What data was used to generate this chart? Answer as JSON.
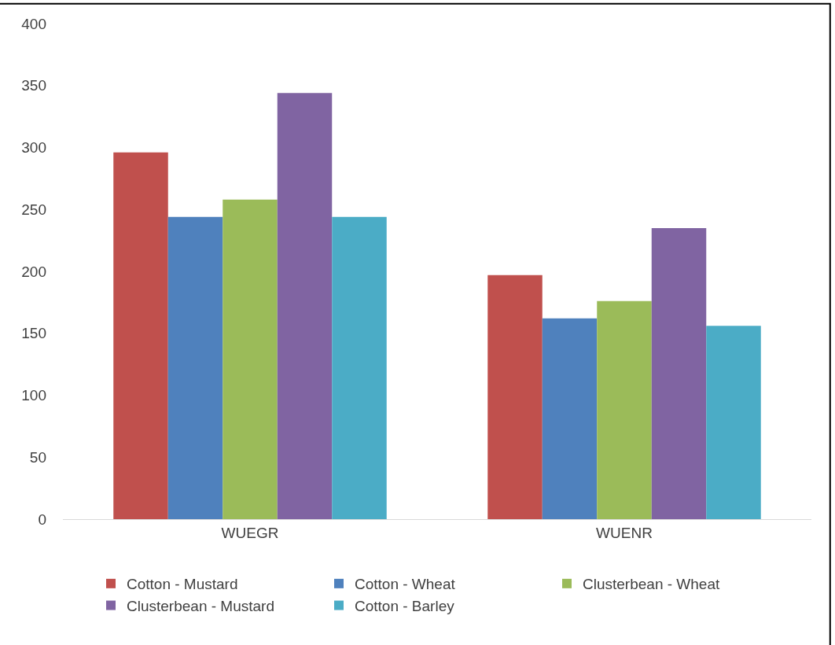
{
  "chart_data": {
    "type": "bar",
    "categories": [
      "WUEGR",
      "WUENR"
    ],
    "series": [
      {
        "name": "Cotton - Mustard",
        "color": "#c0504d",
        "values": [
          296,
          197
        ]
      },
      {
        "name": "Cotton - Wheat",
        "color": "#4f81bd",
        "values": [
          244,
          162
        ]
      },
      {
        "name": "Clusterbean - Wheat",
        "color": "#9bbb59",
        "values": [
          258,
          176
        ]
      },
      {
        "name": "Clusterbean - Mustard",
        "color": "#8064a2",
        "values": [
          344,
          235
        ]
      },
      {
        "name": "Cotton - Barley",
        "color": "#4bacc6",
        "values": [
          244,
          156
        ]
      }
    ],
    "ylim": [
      0,
      400
    ],
    "yticks": [
      0,
      50,
      100,
      150,
      200,
      250,
      300,
      350,
      400
    ],
    "legend": "bottom"
  }
}
